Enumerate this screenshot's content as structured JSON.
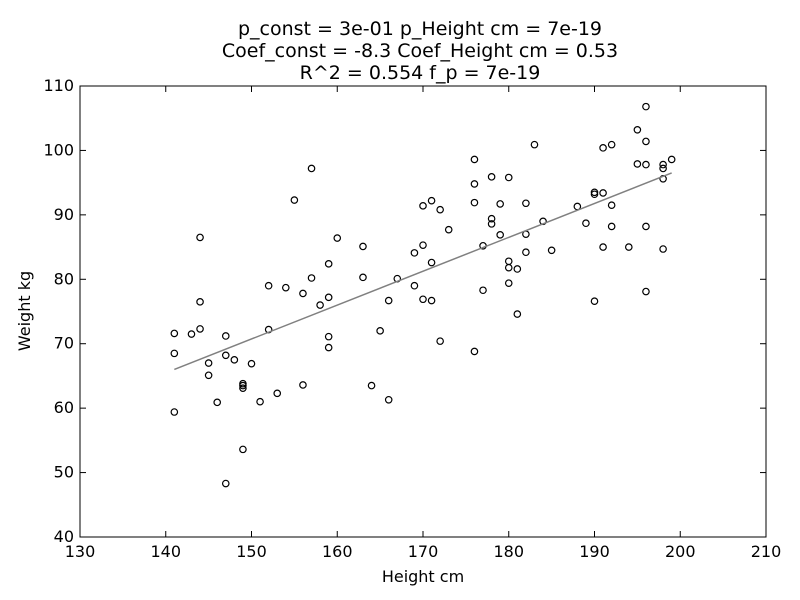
{
  "chart_data": {
    "type": "scatter",
    "title_lines": [
      "p_const = 3e-01  p_Height cm = 7e-19",
      "Coef_const = -8.3  Coef_Height cm = 0.53",
      "R^2 = 0.554 f_p = 7e-19"
    ],
    "xlabel": "Height cm",
    "ylabel": "Weight kg",
    "xlim": [
      130,
      210
    ],
    "ylim": [
      40,
      110
    ],
    "xticks": [
      130,
      140,
      150,
      160,
      170,
      180,
      190,
      200,
      210
    ],
    "yticks": [
      40,
      50,
      60,
      70,
      80,
      90,
      100,
      110
    ],
    "grid": false,
    "fit_line": {
      "x": [
        141,
        199
      ],
      "y": [
        66.0,
        96.5
      ]
    },
    "points": [
      [
        141,
        71.6
      ],
      [
        141,
        68.5
      ],
      [
        141,
        59.4
      ],
      [
        143,
        71.5
      ],
      [
        144,
        86.5
      ],
      [
        144,
        76.5
      ],
      [
        144,
        72.3
      ],
      [
        145,
        67.0
      ],
      [
        145,
        65.1
      ],
      [
        146,
        60.9
      ],
      [
        147,
        71.2
      ],
      [
        147,
        68.2
      ],
      [
        147,
        48.3
      ],
      [
        148,
        67.5
      ],
      [
        149,
        63.8
      ],
      [
        149,
        63.5
      ],
      [
        149,
        63.1
      ],
      [
        149,
        53.6
      ],
      [
        150,
        66.9
      ],
      [
        151,
        61.0
      ],
      [
        152,
        79.0
      ],
      [
        152,
        72.2
      ],
      [
        153,
        62.3
      ],
      [
        154,
        78.7
      ],
      [
        155,
        92.3
      ],
      [
        156,
        77.8
      ],
      [
        156,
        63.6
      ],
      [
        157,
        97.2
      ],
      [
        157,
        80.2
      ],
      [
        158,
        76.0
      ],
      [
        159,
        82.4
      ],
      [
        159,
        77.2
      ],
      [
        159,
        71.1
      ],
      [
        159,
        69.4
      ],
      [
        160,
        86.4
      ],
      [
        163,
        85.1
      ],
      [
        163,
        80.3
      ],
      [
        164,
        63.5
      ],
      [
        165,
        72.0
      ],
      [
        166,
        76.7
      ],
      [
        166,
        61.3
      ],
      [
        167,
        80.1
      ],
      [
        169,
        84.1
      ],
      [
        169,
        79.0
      ],
      [
        170,
        91.4
      ],
      [
        170,
        85.3
      ],
      [
        170,
        76.9
      ],
      [
        171,
        92.2
      ],
      [
        171,
        82.6
      ],
      [
        171,
        76.7
      ],
      [
        172,
        90.8
      ],
      [
        172,
        70.4
      ],
      [
        173,
        87.7
      ],
      [
        176,
        98.6
      ],
      [
        176,
        94.8
      ],
      [
        176,
        91.9
      ],
      [
        176,
        68.8
      ],
      [
        177,
        85.2
      ],
      [
        177,
        78.3
      ],
      [
        178,
        95.9
      ],
      [
        178,
        89.4
      ],
      [
        178,
        88.6
      ],
      [
        179,
        91.7
      ],
      [
        179,
        86.9
      ],
      [
        180,
        95.8
      ],
      [
        180,
        82.8
      ],
      [
        180,
        81.8
      ],
      [
        180,
        79.4
      ],
      [
        181,
        81.6
      ],
      [
        181,
        74.6
      ],
      [
        182,
        91.8
      ],
      [
        182,
        87.0
      ],
      [
        182,
        84.2
      ],
      [
        183,
        100.9
      ],
      [
        184,
        89.0
      ],
      [
        185,
        84.5
      ],
      [
        188,
        91.3
      ],
      [
        189,
        88.7
      ],
      [
        190,
        93.5
      ],
      [
        190,
        93.2
      ],
      [
        190,
        76.6
      ],
      [
        191,
        100.4
      ],
      [
        191,
        93.4
      ],
      [
        191,
        85.0
      ],
      [
        192,
        100.9
      ],
      [
        192,
        91.5
      ],
      [
        192,
        88.2
      ],
      [
        194,
        85.0
      ],
      [
        195,
        103.2
      ],
      [
        195,
        97.9
      ],
      [
        196,
        106.8
      ],
      [
        196,
        101.4
      ],
      [
        196,
        97.8
      ],
      [
        196,
        88.2
      ],
      [
        196,
        78.1
      ],
      [
        198,
        97.8
      ],
      [
        198,
        97.2
      ],
      [
        198,
        95.6
      ],
      [
        198,
        84.7
      ],
      [
        199,
        98.6
      ]
    ]
  }
}
